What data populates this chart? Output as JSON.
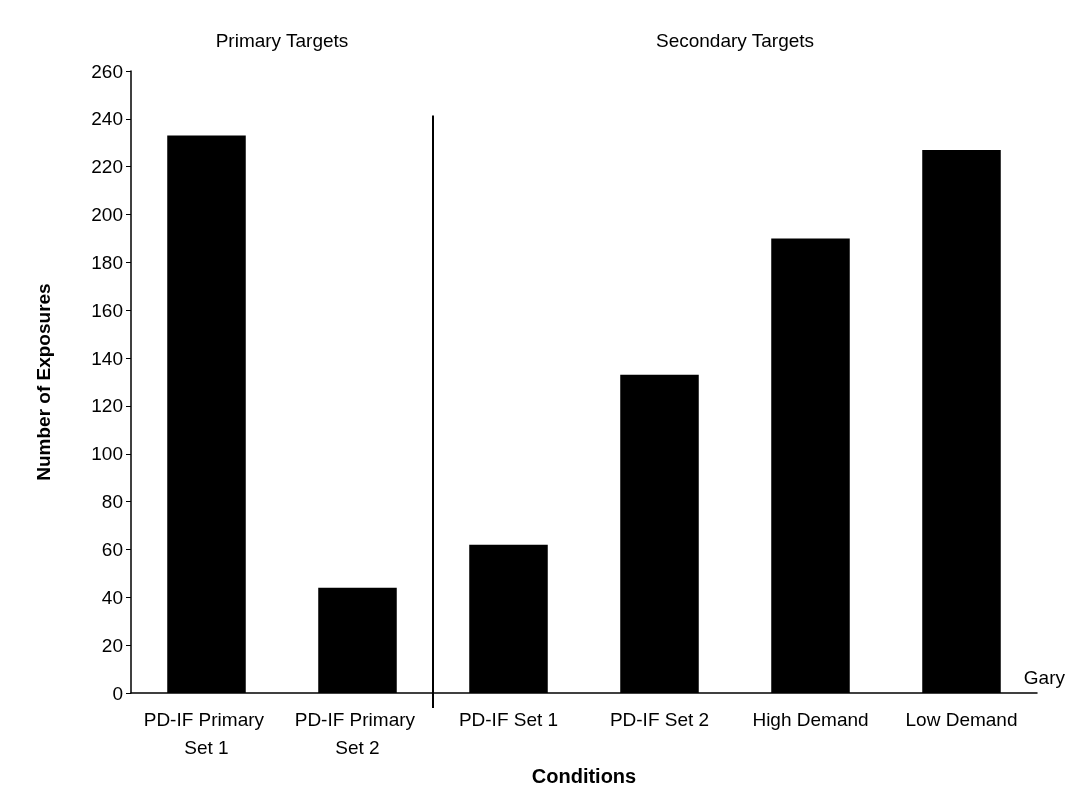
{
  "chart_data": {
    "type": "bar",
    "xlabel": "Conditions",
    "ylabel": "Number of Exposures",
    "categories": [
      "PD-IF Primary Set 1",
      "PD-IF Primary Set 2",
      "PD-IF Set 1",
      "PD-IF Set 2",
      "High Demand",
      "Low Demand"
    ],
    "values": [
      233,
      44,
      62,
      133,
      190,
      227
    ],
    "color": "#000000",
    "ylim": [
      0,
      260
    ],
    "yticks": [
      0,
      20,
      40,
      60,
      80,
      100,
      120,
      140,
      160,
      180,
      200,
      220,
      240,
      260
    ],
    "grid": false,
    "annotations": [
      "Primary Targets",
      "Secondary Targets",
      "Gary"
    ]
  }
}
